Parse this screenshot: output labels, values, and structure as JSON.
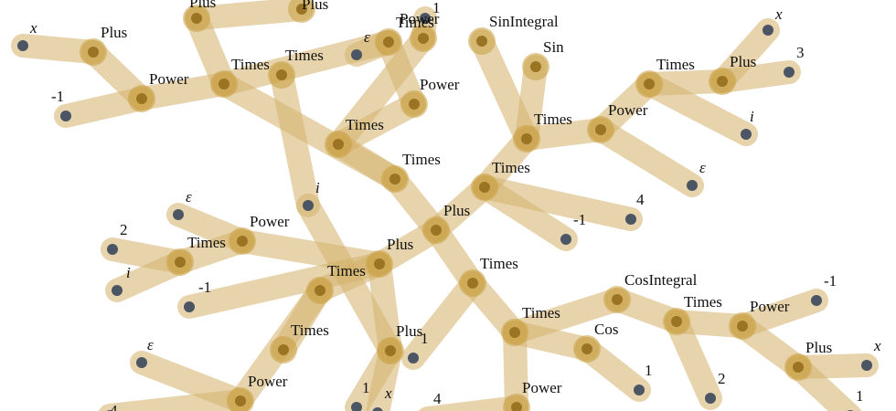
{
  "nodes": [
    {
      "id": "t1",
      "label": "Plus"
    },
    {
      "id": "t2",
      "label": "Plus"
    },
    {
      "id": "t3",
      "label": "x",
      "leaf": true,
      "italic": true
    },
    {
      "id": "t4",
      "label": "Power"
    },
    {
      "id": "t5",
      "label": "-1",
      "leaf": true
    },
    {
      "id": "t6",
      "label": "Times"
    },
    {
      "id": "t7",
      "label": "Times"
    },
    {
      "id": "t8",
      "label": "ε",
      "leaf": true,
      "italic": true
    },
    {
      "id": "t9",
      "label": "Power"
    },
    {
      "id": "t10",
      "label": "1",
      "leaf": true
    },
    {
      "id": "t11",
      "label": "Power"
    },
    {
      "id": "t12",
      "label": "Times"
    },
    {
      "id": "t13",
      "label": "Times"
    },
    {
      "id": "t14",
      "label": "SinIntegral"
    },
    {
      "id": "t15",
      "label": "Sin"
    },
    {
      "id": "t16",
      "label": "Times"
    },
    {
      "id": "t17",
      "label": "Power"
    },
    {
      "id": "t18",
      "label": "ε",
      "leaf": true,
      "italic": true
    },
    {
      "id": "t19",
      "label": "Times"
    },
    {
      "id": "t20",
      "label": "Plus"
    },
    {
      "id": "t21",
      "label": "x",
      "leaf": true,
      "italic": true
    },
    {
      "id": "t22",
      "label": "3",
      "leaf": true
    },
    {
      "id": "t23",
      "label": "i",
      "leaf": true,
      "italic": true
    },
    {
      "id": "t24",
      "label": "Times"
    },
    {
      "id": "t25",
      "label": "4",
      "leaf": true
    },
    {
      "id": "t26",
      "label": "-1",
      "leaf": true
    },
    {
      "id": "t27",
      "label": "Plus"
    },
    {
      "id": "t28",
      "label": "Times"
    },
    {
      "id": "t29",
      "label": "Plus"
    },
    {
      "id": "t30",
      "label": "ε",
      "leaf": true,
      "italic": true
    },
    {
      "id": "t31",
      "label": "Power"
    },
    {
      "id": "t32",
      "label": "Times"
    },
    {
      "id": "t33",
      "label": "2",
      "leaf": true
    },
    {
      "id": "t34",
      "label": "i",
      "leaf": true,
      "italic": true
    },
    {
      "id": "t35",
      "label": "i",
      "leaf": true,
      "italic": true
    },
    {
      "id": "t36",
      "label": "Times"
    },
    {
      "id": "t37",
      "label": "Times"
    },
    {
      "id": "t38",
      "label": "-1",
      "leaf": true
    },
    {
      "id": "t39",
      "label": "Times"
    },
    {
      "id": "t40",
      "label": "Power"
    },
    {
      "id": "t41",
      "label": "ε",
      "leaf": true,
      "italic": true
    },
    {
      "id": "t42",
      "label": "4",
      "leaf": true
    },
    {
      "id": "t43",
      "label": "Plus"
    },
    {
      "id": "t44",
      "label": "1",
      "leaf": true
    },
    {
      "id": "t45",
      "label": "1",
      "leaf": true
    },
    {
      "id": "t46",
      "label": "x",
      "leaf": true,
      "italic": true
    },
    {
      "id": "t47",
      "label": "Times"
    },
    {
      "id": "t48",
      "label": "Cos"
    },
    {
      "id": "t49",
      "label": "1",
      "leaf": true
    },
    {
      "id": "t50",
      "label": "Power"
    },
    {
      "id": "t51",
      "label": "4",
      "leaf": true
    },
    {
      "id": "t52",
      "label": "CosIntegral"
    },
    {
      "id": "t53",
      "label": "Times"
    },
    {
      "id": "t54",
      "label": "2",
      "leaf": true
    },
    {
      "id": "t55",
      "label": "Power"
    },
    {
      "id": "t56",
      "label": "-1",
      "leaf": true
    },
    {
      "id": "t57",
      "label": "Plus"
    },
    {
      "id": "t58",
      "label": "x",
      "leaf": true,
      "italic": true
    },
    {
      "id": "t59",
      "label": "1",
      "leaf": true
    },
    {
      "id": "t60",
      "label": "Plus"
    }
  ],
  "edges": [
    [
      "t1",
      "t6"
    ],
    [
      "t2",
      "t4"
    ],
    [
      "t3",
      "t2"
    ],
    [
      "t4",
      "t6"
    ],
    [
      "t5",
      "t4"
    ],
    [
      "t6",
      "t12"
    ],
    [
      "t7",
      "t6"
    ],
    [
      "t7",
      "t11"
    ],
    [
      "t8",
      "t7"
    ],
    [
      "t9",
      "t13"
    ],
    [
      "t10",
      "t9"
    ],
    [
      "t11",
      "t13"
    ],
    [
      "t13",
      "t12"
    ],
    [
      "t12",
      "t27"
    ],
    [
      "t14",
      "t16"
    ],
    [
      "t15",
      "t16"
    ],
    [
      "t16",
      "t24"
    ],
    [
      "t16",
      "t17"
    ],
    [
      "t17",
      "t19"
    ],
    [
      "t18",
      "t17"
    ],
    [
      "t19",
      "t20"
    ],
    [
      "t19",
      "t23"
    ],
    [
      "t20",
      "t21"
    ],
    [
      "t20",
      "t22"
    ],
    [
      "t24",
      "t25"
    ],
    [
      "t24",
      "t26"
    ],
    [
      "t24",
      "t27"
    ],
    [
      "t27",
      "t28"
    ],
    [
      "t27",
      "t29"
    ],
    [
      "t28",
      "t47"
    ],
    [
      "t28",
      "t44"
    ],
    [
      "t29",
      "t31"
    ],
    [
      "t29",
      "t38"
    ],
    [
      "t29",
      "t39"
    ],
    [
      "t29",
      "t43"
    ],
    [
      "t30",
      "t31"
    ],
    [
      "t31",
      "t32"
    ],
    [
      "t32",
      "t33"
    ],
    [
      "t32",
      "t34"
    ],
    [
      "t35",
      "t43"
    ],
    [
      "t35",
      "t36"
    ],
    [
      "t43",
      "t45"
    ],
    [
      "t43",
      "t46"
    ],
    [
      "t39",
      "t40"
    ],
    [
      "t39",
      "t37"
    ],
    [
      "t40",
      "t41"
    ],
    [
      "t40",
      "t42"
    ],
    [
      "t47",
      "t48"
    ],
    [
      "t48",
      "t49"
    ],
    [
      "t47",
      "t50"
    ],
    [
      "t50",
      "t51"
    ],
    [
      "t47",
      "t52"
    ],
    [
      "t52",
      "t53"
    ],
    [
      "t53",
      "t54"
    ],
    [
      "t53",
      "t55"
    ],
    [
      "t55",
      "t56"
    ],
    [
      "t55",
      "t57"
    ],
    [
      "t57",
      "t58"
    ],
    [
      "t57",
      "t59"
    ],
    [
      "t1",
      "t60"
    ]
  ]
}
